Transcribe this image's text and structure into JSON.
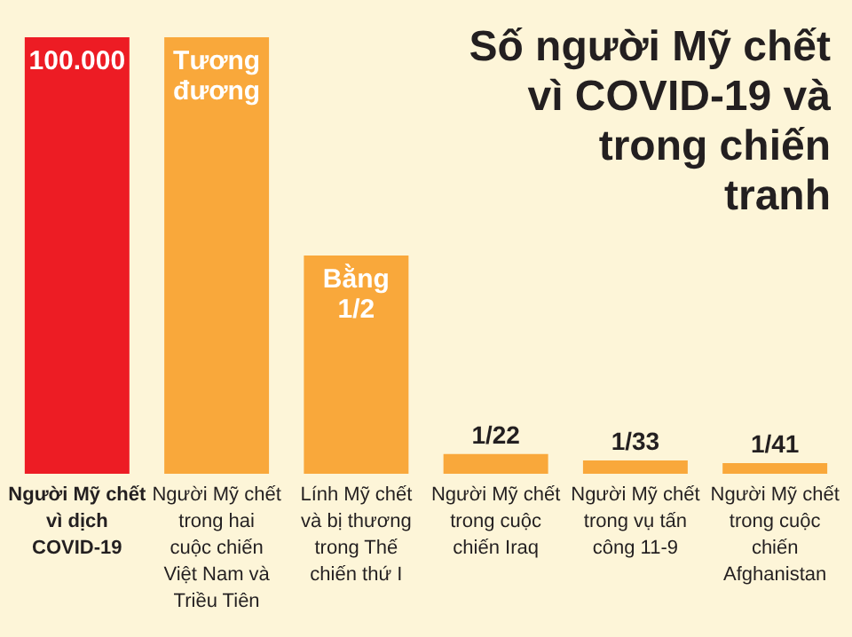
{
  "chart_data": {
    "type": "bar",
    "title": "Số người Mỹ chết vì COVID-19 và trong chiến tranh",
    "ylim": [
      0,
      100000
    ],
    "tick_labels": false,
    "categories": [
      "Người Mỹ chết vì dịch COVID-19",
      "Người Mỹ chết trong hai cuộc chiến Việt Nam và Triều Tiên",
      "Lính Mỹ chết và bị thương trong Thế chiến thứ I",
      "Người Mỹ chết trong cuộc chiến Iraq",
      "Người Mỹ chết trong vụ tấn công 11-9",
      "Người Mỹ chết trong cuộc chiến Afghanistan"
    ],
    "values": [
      100000,
      100000,
      50000,
      4545,
      3030,
      2439
    ],
    "colors": [
      "#ed1c24",
      "#f9a83b",
      "#f9a83b",
      "#f9a83b",
      "#f9a83b",
      "#f9a83b"
    ],
    "value_labels": [
      "100.000",
      "Tương đương",
      "Bằng 1/2",
      "1/22",
      "1/33",
      "1/41"
    ]
  }
}
